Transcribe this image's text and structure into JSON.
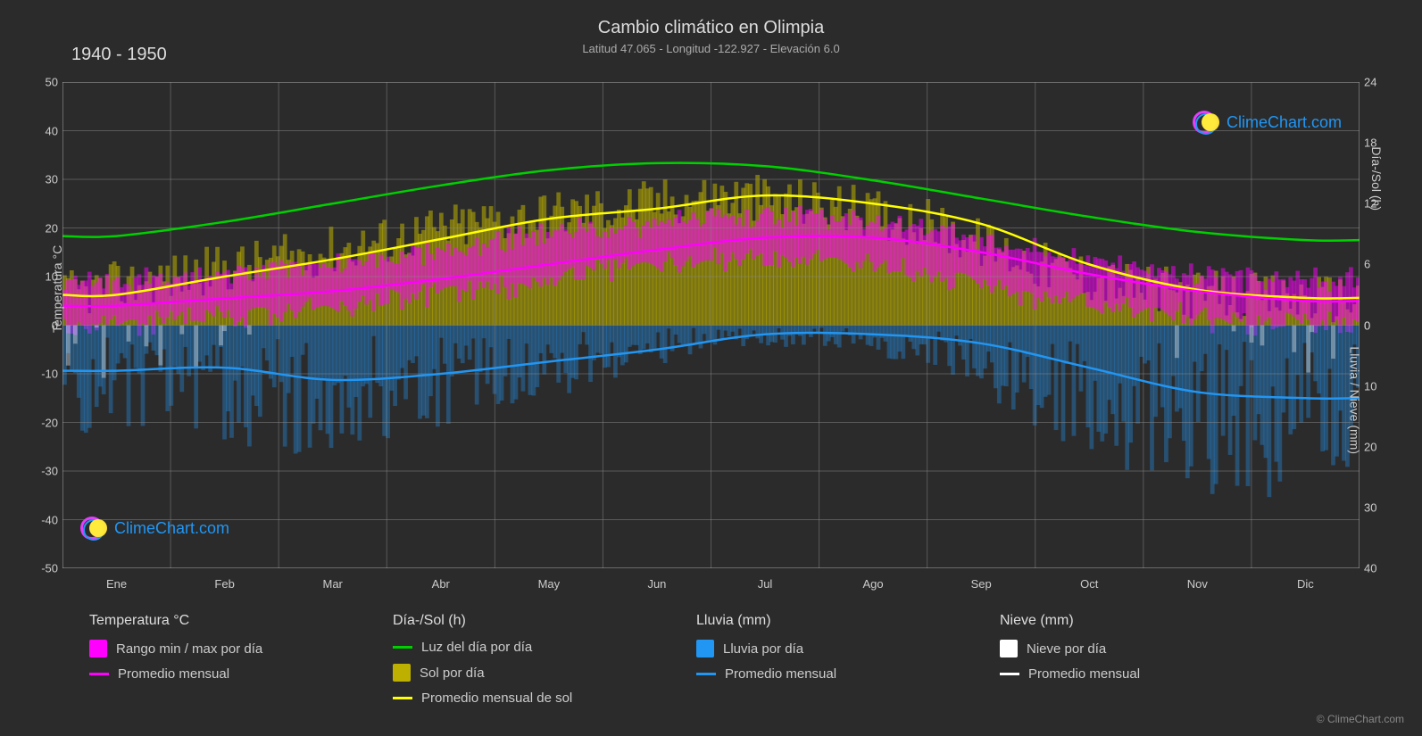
{
  "title": "Cambio climático en Olimpia",
  "subtitle": "Latitud 47.065 - Longitud -122.927 - Elevación 6.0",
  "year_range": "1940 - 1950",
  "watermark_text": "ClimeChart.com",
  "copyright": "© ClimeChart.com",
  "background_color": "#2b2b2b",
  "grid_color": "#888",
  "grid_opacity": 0.5,
  "text_color": "#ccc",
  "y_left": {
    "label": "Temperatura °C",
    "min": -50,
    "max": 50,
    "ticks": [
      -50,
      -40,
      -30,
      -20,
      -10,
      0,
      10,
      20,
      30,
      40,
      50
    ]
  },
  "y_right_top": {
    "label": "Día-/Sol (h)",
    "min": 0,
    "max": 24,
    "ticks": [
      0,
      6,
      12,
      18,
      24
    ]
  },
  "y_right_bottom": {
    "label": "Lluvia / Nieve (mm)",
    "min": 0,
    "max": 40,
    "ticks": [
      0,
      10,
      20,
      30,
      40
    ]
  },
  "x": {
    "labels": [
      "Ene",
      "Feb",
      "Mar",
      "Abr",
      "May",
      "Jun",
      "Jul",
      "Ago",
      "Sep",
      "Oct",
      "Nov",
      "Dic"
    ]
  },
  "series": {
    "daylight_line": {
      "color": "#00d000",
      "values_h": [
        8.8,
        10.2,
        12.0,
        13.8,
        15.3,
        16.0,
        15.7,
        14.3,
        12.5,
        10.7,
        9.2,
        8.4
      ]
    },
    "sun_monthly_line": {
      "color": "#ffff00",
      "values_h": [
        3.0,
        4.8,
        6.5,
        8.5,
        10.5,
        11.5,
        12.8,
        12.0,
        10.0,
        6.0,
        3.5,
        2.7
      ]
    },
    "temp_monthly_line": {
      "color": "#ff00ff",
      "values_c": [
        4.0,
        5.5,
        7.0,
        9.5,
        12.5,
        15.5,
        18.0,
        18.0,
        15.0,
        10.5,
        7.0,
        5.0
      ]
    },
    "rain_monthly_line": {
      "color": "#2196f3",
      "values_mm": [
        7.5,
        7.0,
        9.0,
        8.0,
        6.0,
        4.0,
        1.5,
        1.5,
        3.0,
        7.0,
        11.0,
        12.0
      ]
    },
    "temp_range_bars": {
      "color": "#ff00ff",
      "opacity": 0.5
    },
    "sun_daily_bars": {
      "color": "#bdb000",
      "opacity": 0.55
    },
    "rain_daily_bars": {
      "color": "#2196f3",
      "opacity": 0.35
    },
    "snow_daily_bars": {
      "color": "#ffffff",
      "opacity": 0.35
    }
  },
  "legend": {
    "groups": [
      {
        "title": "Temperatura °C",
        "items": [
          {
            "type": "box",
            "color": "#ff00ff",
            "label": "Rango min / max por día"
          },
          {
            "type": "line",
            "color": "#ff00ff",
            "label": "Promedio mensual"
          }
        ]
      },
      {
        "title": "Día-/Sol (h)",
        "items": [
          {
            "type": "line",
            "color": "#00d000",
            "label": "Luz del día por día"
          },
          {
            "type": "box",
            "color": "#bdb000",
            "label": "Sol por día"
          },
          {
            "type": "line",
            "color": "#ffff00",
            "label": "Promedio mensual de sol"
          }
        ]
      },
      {
        "title": "Lluvia (mm)",
        "items": [
          {
            "type": "box",
            "color": "#2196f3",
            "label": "Lluvia por día"
          },
          {
            "type": "line",
            "color": "#2196f3",
            "label": "Promedio mensual"
          }
        ]
      },
      {
        "title": "Nieve (mm)",
        "items": [
          {
            "type": "box",
            "color": "#ffffff",
            "label": "Nieve por día"
          },
          {
            "type": "line",
            "color": "#ffffff",
            "label": "Promedio mensual"
          }
        ]
      }
    ]
  }
}
